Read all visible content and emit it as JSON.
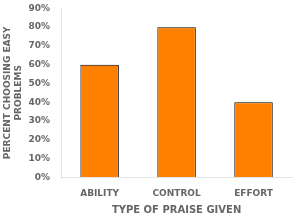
{
  "chart_data": {
    "type": "bar",
    "categories": [
      "ABILITY",
      "CONTROL",
      "EFFORT"
    ],
    "values": [
      60,
      80,
      40
    ],
    "color": "#FF8000",
    "xlabel": "TYPE OF PRAISE GIVEN",
    "ylabel": "PERCENT CHOOSING EASY\nPROBLEMS",
    "ylim": [
      0,
      90
    ],
    "yticks": [
      {
        "value": 0,
        "label": "0%"
      },
      {
        "value": 10,
        "label": "10%"
      },
      {
        "value": 20,
        "label": "20%"
      },
      {
        "value": 30,
        "label": "30%"
      },
      {
        "value": 40,
        "label": "40%"
      },
      {
        "value": 50,
        "label": "50%"
      },
      {
        "value": 60,
        "label": "60%"
      },
      {
        "value": 70,
        "label": "70%"
      },
      {
        "value": 80,
        "label": "80%"
      },
      {
        "value": 90,
        "label": "90%"
      }
    ],
    "grid": false
  }
}
